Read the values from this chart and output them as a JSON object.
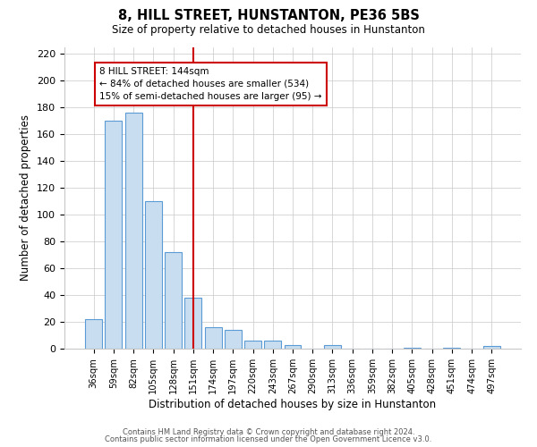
{
  "title": "8, HILL STREET, HUNSTANTON, PE36 5BS",
  "subtitle": "Size of property relative to detached houses in Hunstanton",
  "xlabel": "Distribution of detached houses by size in Hunstanton",
  "ylabel": "Number of detached properties",
  "bar_labels": [
    "36sqm",
    "59sqm",
    "82sqm",
    "105sqm",
    "128sqm",
    "151sqm",
    "174sqm",
    "197sqm",
    "220sqm",
    "243sqm",
    "267sqm",
    "290sqm",
    "313sqm",
    "336sqm",
    "359sqm",
    "382sqm",
    "405sqm",
    "428sqm",
    "451sqm",
    "474sqm",
    "497sqm"
  ],
  "bar_values": [
    22,
    170,
    176,
    110,
    72,
    38,
    16,
    14,
    6,
    6,
    3,
    0,
    3,
    0,
    0,
    0,
    1,
    0,
    1,
    0,
    2
  ],
  "bar_color": "#c9ddf0",
  "bar_edgecolor": "#5b9bd5",
  "vline_label": "151sqm",
  "vline_color": "#cc0000",
  "annotation_title": "8 HILL STREET: 144sqm",
  "annotation_line1": "← 84% of detached houses are smaller (534)",
  "annotation_line2": "15% of semi-detached houses are larger (95) →",
  "annotation_box_color": "#cc0000",
  "ylim": [
    0,
    225
  ],
  "yticks": [
    0,
    20,
    40,
    60,
    80,
    100,
    120,
    140,
    160,
    180,
    200,
    220
  ],
  "footer1": "Contains HM Land Registry data © Crown copyright and database right 2024.",
  "footer2": "Contains public sector information licensed under the Open Government Licence v3.0.",
  "background_color": "#ffffff",
  "grid_color": "#c8c8c8"
}
